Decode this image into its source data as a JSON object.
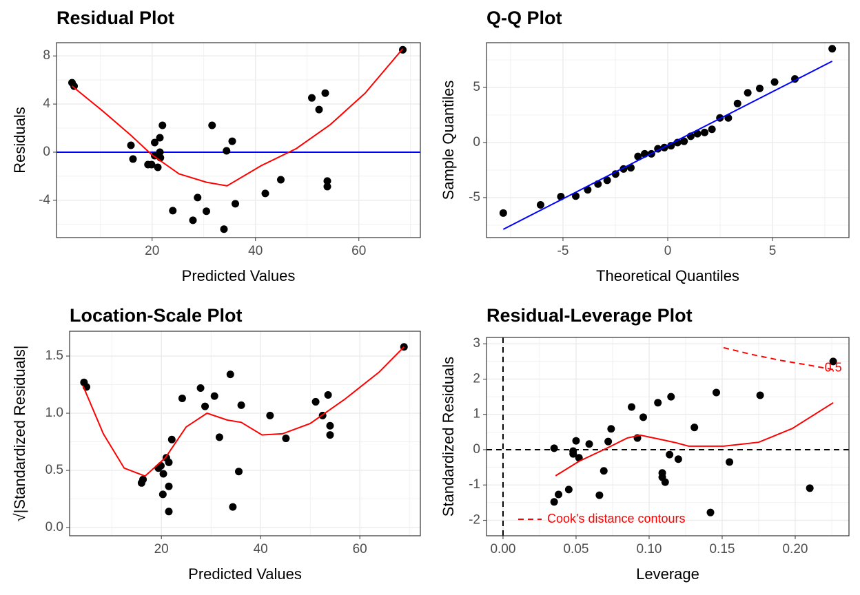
{
  "chart_data": [
    {
      "type": "scatter",
      "title": "Residual Plot",
      "xlabel": "Predicted Values",
      "ylabel": "Residuals",
      "xlim": [
        1.5,
        71.9
      ],
      "ylim": [
        -7.1,
        9.1
      ],
      "xticks": [
        20,
        40,
        60
      ],
      "yticks": [
        8,
        4,
        0,
        -4
      ],
      "xminor": [
        10,
        30,
        50,
        70
      ],
      "yminor": [
        6,
        2,
        -2,
        -6
      ],
      "grid": true,
      "hlines": [
        {
          "value": 0,
          "color": "#0000ff",
          "dash": false
        }
      ],
      "series": [
        {
          "mode": "points",
          "color": "#000000",
          "x": [
            4.5,
            4.9,
            15.9,
            16.3,
            19.2,
            19.9,
            20.5,
            20.5,
            21.1,
            21.5,
            21.5,
            21.6,
            22.0,
            24.0,
            27.9,
            28.8,
            30.5,
            31.6,
            33.9,
            34.4,
            35.5,
            36.1,
            41.9,
            44.9,
            50.9,
            52.3,
            53.5,
            53.9,
            53.9,
            68.5
          ],
          "values": [
            5.77,
            5.49,
            0.57,
            -0.57,
            -1.03,
            -1.03,
            0.8,
            -0.29,
            -1.26,
            1.2,
            0,
            -0.46,
            2.23,
            -4.86,
            -5.66,
            -3.77,
            -4.91,
            2.23,
            -6.4,
            0.11,
            0.91,
            -4.29,
            -3.43,
            -2.29,
            4.51,
            3.54,
            4.91,
            -2.4,
            -2.86,
            8.51
          ]
        },
        {
          "mode": "line",
          "color": "#ff0000",
          "dash": false,
          "x": [
            4.5,
            10.5,
            15.9,
            19.9,
            25.2,
            30.5,
            34.5,
            41.2,
            47.9,
            54.5,
            61.2,
            68.5
          ],
          "values": [
            5.5,
            3.4,
            1.4,
            -0.2,
            -1.8,
            -2.5,
            -2.8,
            -1.1,
            0.3,
            2.3,
            4.9,
            8.6
          ]
        }
      ]
    },
    {
      "type": "scatter",
      "title": "Q-Q Plot",
      "xlabel": "Theoretical Quantiles",
      "ylabel": "Sample Quantiles",
      "xlim": [
        -8.65,
        8.65
      ],
      "ylim": [
        -8.63,
        9.06
      ],
      "xticks": [
        -5,
        0,
        5
      ],
      "yticks": [
        5,
        0,
        -5
      ],
      "xminor": [
        -7.5,
        -2.5,
        2.5,
        7.5
      ],
      "yminor": [
        7.5,
        2.5,
        -2.5,
        -7.5
      ],
      "grid": true,
      "series": [
        {
          "mode": "points",
          "color": "#000000",
          "x": [
            -7.85,
            -6.07,
            -5.1,
            -4.39,
            -3.82,
            -3.33,
            -2.89,
            -2.49,
            -2.11,
            -1.76,
            -1.42,
            -1.1,
            -0.78,
            -0.47,
            -0.16,
            0.16,
            0.47,
            0.78,
            1.1,
            1.42,
            1.76,
            2.11,
            2.49,
            2.89,
            3.33,
            3.82,
            4.39,
            5.1,
            6.07,
            7.85
          ],
          "values": [
            -6.4,
            -5.66,
            -4.91,
            -4.86,
            -4.29,
            -3.77,
            -3.43,
            -2.86,
            -2.4,
            -2.29,
            -1.26,
            -1.03,
            -1.03,
            -0.57,
            -0.46,
            -0.29,
            0,
            0.11,
            0.57,
            0.8,
            0.91,
            1.2,
            2.23,
            2.23,
            3.54,
            4.51,
            4.91,
            5.49,
            5.77,
            8.51
          ]
        },
        {
          "mode": "line",
          "color": "#0000ff",
          "dash": false,
          "x": [
            -7.85,
            7.85
          ],
          "values": [
            -7.88,
            7.38
          ]
        }
      ]
    },
    {
      "type": "scatter",
      "title": "Location-Scale Plot",
      "xlabel": "Predicted Values",
      "ylabel": "√|Standardized Residuals|",
      "xlim": [
        1.5,
        72.2
      ],
      "ylim": [
        -0.072,
        1.717
      ],
      "xticks": [
        20,
        40,
        60
      ],
      "yticks": [
        {
          "value": 0,
          "label": "0.0"
        },
        0.5,
        {
          "value": 1,
          "label": "1.0"
        },
        1.5
      ],
      "xminor": [
        10,
        30,
        50,
        70
      ],
      "yminor": [
        0.25,
        0.75,
        1.25
      ],
      "grid": true,
      "series": [
        {
          "mode": "points",
          "color": "#000000",
          "x": [
            4.4,
            4.9,
            16.0,
            16.3,
            19.4,
            19.9,
            20.4,
            20.3,
            21.0,
            21.5,
            21.5,
            21.5,
            22.1,
            24.2,
            27.9,
            28.8,
            30.7,
            31.7,
            33.9,
            34.4,
            35.6,
            36.1,
            41.9,
            45.1,
            51.1,
            52.5,
            53.6,
            54.0,
            54.0,
            68.9
          ],
          "values": [
            1.27,
            1.23,
            0.39,
            0.42,
            0.52,
            0.54,
            0.47,
            0.29,
            0.61,
            0.57,
            0.36,
            0.14,
            0.77,
            1.13,
            1.22,
            1.06,
            1.15,
            0.79,
            1.34,
            0.18,
            0.49,
            1.07,
            0.98,
            0.78,
            1.1,
            0.98,
            1.16,
            0.89,
            0.81,
            1.58
          ]
        },
        {
          "mode": "line",
          "color": "#ff0000",
          "dash": false,
          "x": [
            4.2,
            8.3,
            12.5,
            16.7,
            20.8,
            25,
            29.2,
            33.3,
            36.1,
            40.3,
            44.4,
            50,
            56.9,
            63.9,
            68.9
          ],
          "values": [
            1.24,
            0.82,
            0.52,
            0.45,
            0.61,
            0.88,
            1.0,
            0.94,
            0.92,
            0.81,
            0.82,
            0.91,
            1.12,
            1.36,
            1.58
          ]
        }
      ]
    },
    {
      "type": "scatter",
      "title": "Residual-Leverage Plot",
      "xlabel": "Leverage",
      "ylabel": "Standardized Residuals",
      "xlim": [
        -0.0113,
        0.2368
      ],
      "ylim": [
        -2.44,
        3.18
      ],
      "xticks": [
        {
          "value": 0,
          "label": "0.00"
        },
        0.05,
        {
          "value": 0.1,
          "label": "0.10"
        },
        0.15,
        {
          "value": 0.2,
          "label": "0.20"
        }
      ],
      "yticks": [
        3,
        2,
        1,
        0,
        -1,
        -2
      ],
      "xminor": [
        0.025,
        0.075,
        0.125,
        0.175,
        0.225
      ],
      "yminor": [
        2.5,
        1.5,
        0.5,
        -0.5,
        -1.5
      ],
      "grid": true,
      "legend": "bottom-left",
      "hlines": [
        {
          "value": 0,
          "color": "#000000",
          "dash": true
        }
      ],
      "vlines": [
        {
          "value": 0,
          "color": "#000000",
          "dash": true
        }
      ],
      "series": [
        {
          "mode": "points",
          "color": "#000000",
          "x": [
            0.035,
            0.038,
            0.035,
            0.045,
            0.048,
            0.048,
            0.05,
            0.052,
            0.059,
            0.066,
            0.069,
            0.072,
            0.074,
            0.088,
            0.092,
            0.096,
            0.106,
            0.109,
            0.109,
            0.111,
            0.115,
            0.114,
            0.12,
            0.131,
            0.142,
            0.146,
            0.155,
            0.176,
            0.21,
            0.226
          ],
          "values": [
            0.04,
            -1.27,
            -1.48,
            -1.13,
            -0.04,
            -0.12,
            0.25,
            -0.23,
            0.16,
            -1.29,
            -0.6,
            0.23,
            0.59,
            1.21,
            0.33,
            0.92,
            1.33,
            -0.66,
            -0.78,
            -0.92,
            1.5,
            -0.14,
            -0.27,
            0.63,
            -1.78,
            1.62,
            -0.35,
            1.54,
            -1.09,
            2.5
          ]
        },
        {
          "mode": "line",
          "color": "#ff0000",
          "dash": false,
          "x": [
            0.036,
            0.052,
            0.071,
            0.085,
            0.094,
            0.108,
            0.118,
            0.127,
            0.151,
            0.175,
            0.198,
            0.226
          ],
          "values": [
            -0.74,
            -0.33,
            0.04,
            0.33,
            0.41,
            0.29,
            0.2,
            0.1,
            0.1,
            0.21,
            0.6,
            1.33
          ]
        },
        {
          "mode": "line",
          "name": "Cook's distance contours",
          "color": "#ff0000",
          "dash": true,
          "end_label": "0.5",
          "x": [
            0.151,
            0.17,
            0.19,
            0.21,
            0.226
          ],
          "values": [
            2.89,
            2.7,
            2.53,
            2.39,
            2.27
          ]
        }
      ]
    }
  ]
}
